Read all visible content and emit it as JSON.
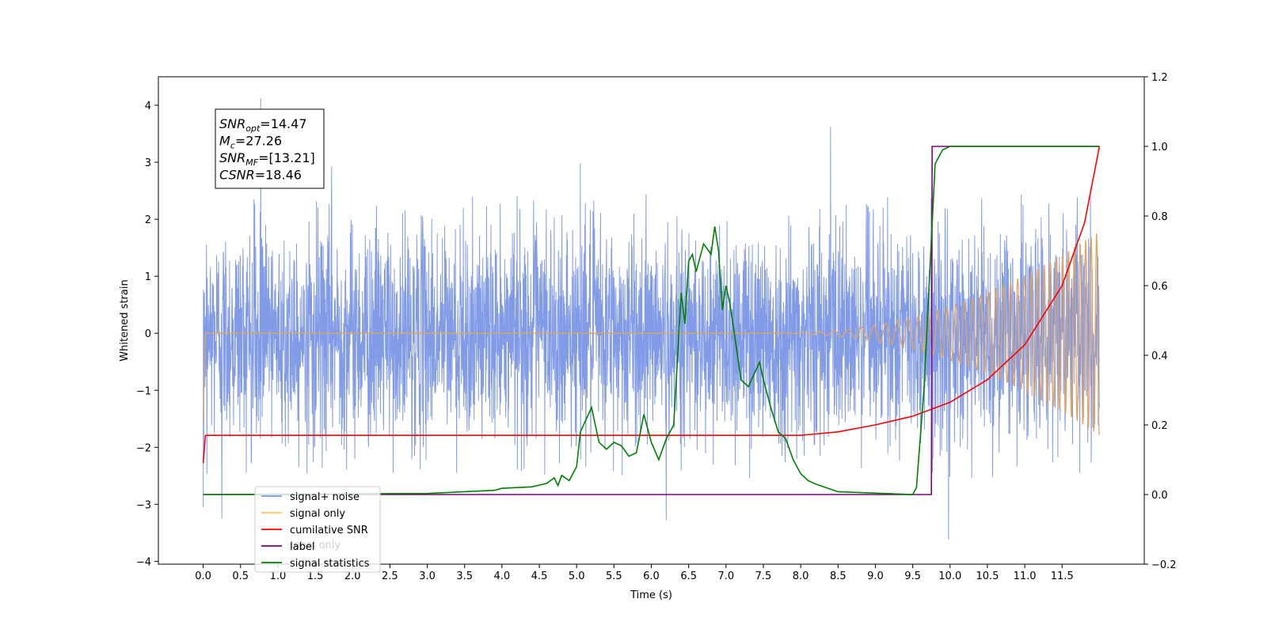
{
  "chart_data": {
    "type": "line",
    "xlabel": "Time (s)",
    "ylabel": "Whitened strain",
    "xlim": [
      -0.6,
      12.6
    ],
    "ylim": [
      -4.05,
      4.5
    ],
    "y2lim": [
      -0.2,
      1.2
    ],
    "x_ticks": [
      "0.0",
      "0.5",
      "1.0",
      "1.5",
      "2.0",
      "2.5",
      "3.0",
      "3.5",
      "4.0",
      "4.5",
      "5.0",
      "5.5",
      "6.0",
      "6.5",
      "7.0",
      "7.5",
      "8.0",
      "8.5",
      "9.0",
      "9.5",
      "10.0",
      "10.5",
      "11.0",
      "11.5"
    ],
    "y_ticks": [
      "4",
      "3",
      "2",
      "1",
      "0",
      "−1",
      "−2",
      "−3",
      "−4"
    ],
    "y2_ticks": [
      "1.2",
      "1.0",
      "0.8",
      "0.6",
      "0.4",
      "0.2",
      "0.0",
      "−0.2"
    ],
    "grid": false,
    "annotation": {
      "lines": [
        {
          "sym": "SNR",
          "sub": "opt",
          "val": "=14.47"
        },
        {
          "sym": "M",
          "sub": "c",
          "val": "=27.26"
        },
        {
          "sym": "SNR",
          "sub": "MF",
          "val": "=[13.21]"
        },
        {
          "sym": "CSNR",
          "sub": "",
          "val": "=18.46"
        }
      ]
    },
    "legend": {
      "position": "bottom-left",
      "entries": [
        {
          "label": "signal+ noise",
          "color": "#7b96e6"
        },
        {
          "label": "signal only",
          "color": "#ffc766"
        },
        {
          "label": "cumilative SNR",
          "color": "#ff0000"
        },
        {
          "label": "label",
          "color": "#800080"
        },
        {
          "label": "signal statistics",
          "color": "#008000"
        }
      ]
    },
    "overlapped_text": "label only",
    "series": [
      {
        "name": "signal+ noise",
        "color": "#7b96e6",
        "axis": "left",
        "description": "dense noisy waveform",
        "x_range": [
          0,
          12.0
        ],
        "noise_std": 0.95,
        "peaks": [
          [
            0.77,
            4.12
          ],
          [
            8.4,
            3.62
          ],
          [
            5.05,
            2.98
          ],
          [
            1.72,
            2.92
          ],
          [
            9.98,
            -3.62
          ],
          [
            6.2,
            -3.28
          ],
          [
            0.25,
            -3.25
          ],
          [
            0.0,
            -3.05
          ]
        ]
      },
      {
        "name": "signal only",
        "color": "#e0a463",
        "axis": "left",
        "description": "chirp, flat zero until ~7.8 s then growing oscillation",
        "x_range": [
          0,
          12.0
        ],
        "start_value": -1.5,
        "amplitude_end": 1.8
      },
      {
        "name": "cumilative SNR",
        "color": "#ff0000",
        "axis": "right",
        "x": [
          0.0,
          0.03,
          8.0,
          8.5,
          9.0,
          9.5,
          10.0,
          10.5,
          11.0,
          11.5,
          11.8,
          12.0
        ],
        "y": [
          0.09,
          0.17,
          0.17,
          0.18,
          0.2,
          0.225,
          0.265,
          0.33,
          0.43,
          0.6,
          0.78,
          1.0
        ]
      },
      {
        "name": "label",
        "color": "#800080",
        "axis": "right",
        "x": [
          0.0,
          9.75,
          9.76,
          12.0
        ],
        "y": [
          0.0,
          0.0,
          1.0,
          1.0
        ]
      },
      {
        "name": "signal statistics",
        "color": "#008000",
        "axis": "right",
        "x": [
          0.0,
          3.0,
          3.5,
          3.9,
          4.0,
          4.4,
          4.6,
          4.7,
          4.75,
          4.8,
          4.9,
          5.0,
          5.05,
          5.2,
          5.25,
          5.3,
          5.4,
          5.5,
          5.6,
          5.7,
          5.8,
          5.9,
          6.0,
          6.1,
          6.2,
          6.3,
          6.4,
          6.45,
          6.5,
          6.55,
          6.6,
          6.7,
          6.8,
          6.85,
          6.9,
          6.95,
          7.0,
          7.05,
          7.1,
          7.2,
          7.3,
          7.45,
          7.5,
          7.6,
          7.7,
          7.8,
          7.9,
          8.0,
          8.1,
          8.2,
          8.5,
          9.5,
          9.55,
          9.65,
          9.8,
          9.9,
          10.0,
          12.0
        ],
        "y": [
          0.0,
          0.003,
          0.008,
          0.012,
          0.018,
          0.022,
          0.032,
          0.048,
          0.026,
          0.055,
          0.04,
          0.08,
          0.18,
          0.25,
          0.2,
          0.15,
          0.13,
          0.15,
          0.14,
          0.11,
          0.12,
          0.23,
          0.15,
          0.1,
          0.16,
          0.2,
          0.58,
          0.49,
          0.67,
          0.69,
          0.64,
          0.72,
          0.69,
          0.77,
          0.7,
          0.53,
          0.6,
          0.55,
          0.48,
          0.33,
          0.31,
          0.38,
          0.33,
          0.25,
          0.18,
          0.16,
          0.1,
          0.06,
          0.04,
          0.03,
          0.008,
          0.0,
          0.02,
          0.3,
          0.95,
          0.99,
          1.0,
          1.0
        ]
      }
    ]
  }
}
